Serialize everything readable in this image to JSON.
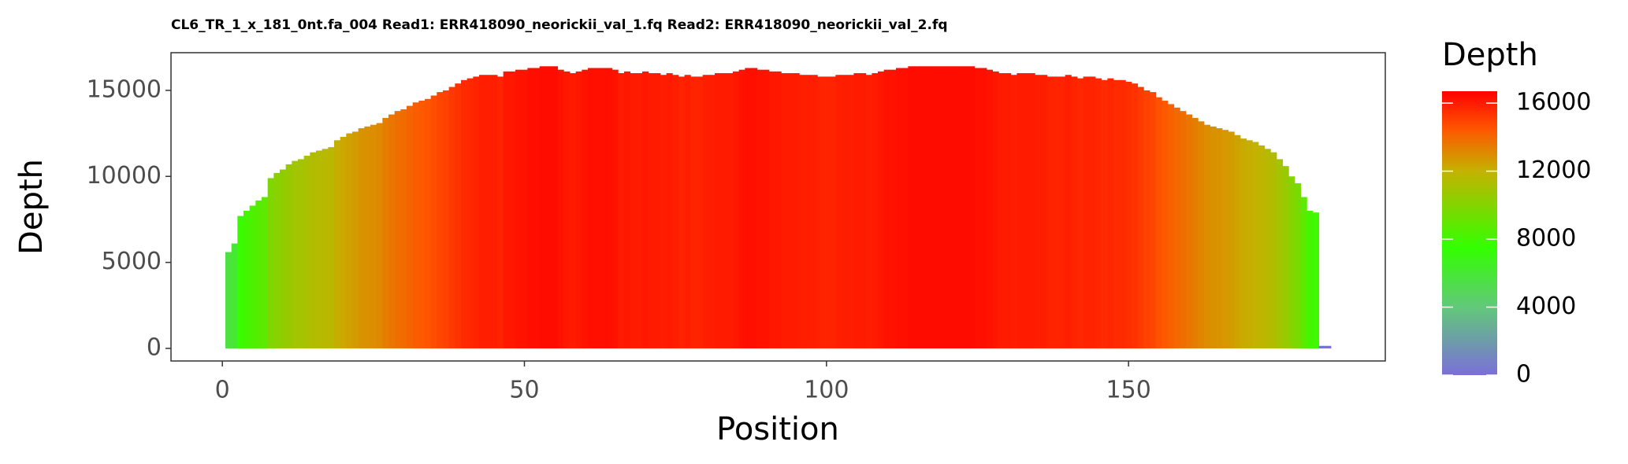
{
  "chart_data": {
    "type": "bar",
    "title": "CL6_TR_1_x_181_0nt.fa_004 Read1: ERR418090_neorickii_val_1.fq Read2: ERR418090_neorickii_val_2.fq",
    "x_label": "Position",
    "y_label": "Depth",
    "x": [
      1,
      2,
      3,
      4,
      5,
      6,
      7,
      8,
      9,
      10,
      11,
      12,
      13,
      14,
      15,
      16,
      17,
      18,
      19,
      20,
      21,
      22,
      23,
      24,
      25,
      26,
      27,
      28,
      29,
      30,
      31,
      32,
      33,
      34,
      35,
      36,
      37,
      38,
      39,
      40,
      41,
      42,
      43,
      44,
      45,
      46,
      47,
      48,
      49,
      50,
      51,
      52,
      53,
      54,
      55,
      56,
      57,
      58,
      59,
      60,
      61,
      62,
      63,
      64,
      65,
      66,
      67,
      68,
      69,
      70,
      71,
      72,
      73,
      74,
      75,
      76,
      77,
      78,
      79,
      80,
      81,
      82,
      83,
      84,
      85,
      86,
      87,
      88,
      89,
      90,
      91,
      92,
      93,
      94,
      95,
      96,
      97,
      98,
      99,
      100,
      101,
      102,
      103,
      104,
      105,
      106,
      107,
      108,
      109,
      110,
      111,
      112,
      113,
      114,
      115,
      116,
      117,
      118,
      119,
      120,
      121,
      122,
      123,
      124,
      125,
      126,
      127,
      128,
      129,
      130,
      131,
      132,
      133,
      134,
      135,
      136,
      137,
      138,
      139,
      140,
      141,
      142,
      143,
      144,
      145,
      146,
      147,
      148,
      149,
      150,
      151,
      152,
      153,
      154,
      155,
      156,
      157,
      158,
      159,
      160,
      161,
      162,
      163,
      164,
      165,
      166,
      167,
      168,
      169,
      170,
      171,
      172,
      173,
      174,
      175,
      176,
      177,
      178,
      179,
      180,
      181,
      182,
      183
    ],
    "values": [
      5600,
      6100,
      7700,
      8000,
      8300,
      8600,
      8800,
      9900,
      10200,
      10400,
      10700,
      10900,
      11000,
      11200,
      11400,
      11500,
      11600,
      11700,
      12100,
      12300,
      12500,
      12600,
      12800,
      12900,
      13000,
      13100,
      13400,
      13600,
      13800,
      13900,
      14100,
      14300,
      14400,
      14500,
      14700,
      14900,
      15000,
      15200,
      15400,
      15600,
      15700,
      15800,
      15900,
      15900,
      15900,
      15800,
      16100,
      16100,
      16200,
      16200,
      16300,
      16300,
      16400,
      16400,
      16400,
      16200,
      16100,
      16000,
      16100,
      16200,
      16300,
      16300,
      16300,
      16300,
      16200,
      16000,
      16100,
      16000,
      16000,
      16100,
      16000,
      16000,
      15900,
      16000,
      15900,
      15800,
      15900,
      15800,
      15800,
      15900,
      15900,
      16000,
      16000,
      16000,
      16100,
      16200,
      16300,
      16300,
      16200,
      16200,
      16100,
      16100,
      16000,
      16000,
      16000,
      15900,
      15900,
      15900,
      15800,
      15800,
      15800,
      15900,
      15900,
      15900,
      16000,
      16000,
      15900,
      16000,
      16100,
      16200,
      16200,
      16300,
      16300,
      16400,
      16400,
      16400,
      16400,
      16400,
      16400,
      16400,
      16400,
      16400,
      16400,
      16400,
      16300,
      16300,
      16200,
      16100,
      16000,
      16000,
      15900,
      16000,
      16000,
      16000,
      15900,
      15900,
      15800,
      15800,
      15800,
      15900,
      15800,
      15700,
      15800,
      15800,
      15700,
      15600,
      15700,
      15600,
      15600,
      15500,
      15400,
      15200,
      15000,
      14900,
      14600,
      14400,
      14200,
      14000,
      13800,
      13600,
      13400,
      13200,
      13000,
      12900,
      12800,
      12700,
      12600,
      12400,
      12200,
      12100,
      12000,
      11800,
      11600,
      11400,
      11000,
      10600,
      10000,
      9600,
      8800,
      8000,
      7900,
      150,
      150
    ],
    "xlim": [
      -8.5,
      192.5
    ],
    "ylim": [
      -730,
      17190
    ],
    "xticks": [
      0,
      50,
      100,
      150
    ],
    "yticks": [
      0,
      5000,
      10000,
      15000
    ],
    "colorbar": {
      "title": "Depth",
      "ticks": [
        0,
        4000,
        8000,
        12000,
        16000
      ],
      "limits": [
        0,
        16700
      ],
      "stops": [
        0,
        4000,
        7500,
        12000,
        14500,
        16700
      ],
      "colors": [
        "#7a6fd8",
        "#62c87a",
        "#33ff00",
        "#c4b200",
        "#ff5500",
        "#ff0000"
      ]
    }
  }
}
